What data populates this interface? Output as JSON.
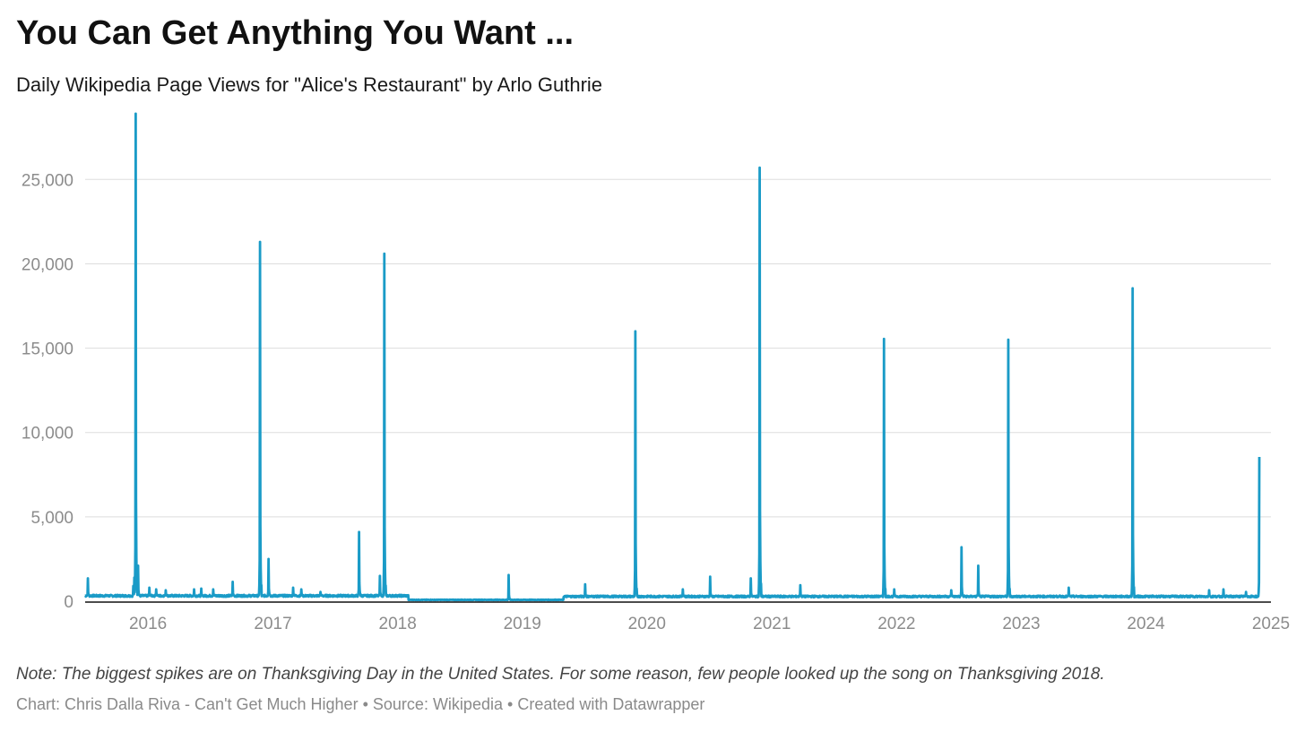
{
  "title": "You Can Get Anything You Want ...",
  "subtitle": "Daily Wikipedia Page Views for \"Alice's Restaurant\" by Arlo Guthrie",
  "note": "Note: The biggest spikes are on Thanksgiving Day in the United States. For some reason, few people looked up the song on Thanksgiving 2018.",
  "footer": {
    "chart_credit": "Chart: Chris Dalla Riva - Can't Get Much Higher",
    "source": "Source: Wikipedia",
    "tool": "Created with Datawrapper",
    "separator": "•"
  },
  "colors": {
    "line": "#1a9bc7",
    "grid": "#dddddd",
    "axis": "#111111",
    "tick_text": "#8c8c8c"
  },
  "chart_data": {
    "type": "line",
    "title": "You Can Get Anything You Want ...",
    "subtitle": "Daily Wikipedia Page Views for \"Alice's Restaurant\" by Arlo Guthrie",
    "xlabel": "",
    "ylabel": "",
    "x_range": [
      "2015-07-01",
      "2025-01-01"
    ],
    "x_data_start": "2015-07-01",
    "x_data_end": "2024-11-28",
    "ylim": [
      0,
      29000
    ],
    "x_ticks": [
      "2016",
      "2017",
      "2018",
      "2019",
      "2020",
      "2021",
      "2022",
      "2023",
      "2024",
      "2025"
    ],
    "y_ticks": [
      0,
      5000,
      10000,
      15000,
      20000,
      25000
    ],
    "y_tick_labels": [
      "0",
      "5,000",
      "10,000",
      "15,000",
      "20,000",
      "25,000"
    ],
    "grid": true,
    "legend": "none",
    "baseline": [
      {
        "start": "2015-07-01",
        "end": "2018-01-31",
        "value": 320
      },
      {
        "start": "2018-02-01",
        "end": "2019-04-30",
        "value": 80
      },
      {
        "start": "2019-05-01",
        "end": "2024-11-28",
        "value": 280
      }
    ],
    "series": [
      {
        "values": [
          {
            "date": "2015-07-09",
            "value": 1350
          },
          {
            "date": "2015-11-19",
            "value": 900
          },
          {
            "date": "2015-11-22",
            "value": 1400
          },
          {
            "date": "2015-11-26",
            "value": 28900
          },
          {
            "date": "2015-12-03",
            "value": 2100
          },
          {
            "date": "2016-01-05",
            "value": 800
          },
          {
            "date": "2016-01-25",
            "value": 700
          },
          {
            "date": "2016-02-22",
            "value": 650
          },
          {
            "date": "2016-05-15",
            "value": 700
          },
          {
            "date": "2016-06-05",
            "value": 750
          },
          {
            "date": "2016-07-10",
            "value": 700
          },
          {
            "date": "2016-09-05",
            "value": 1150
          },
          {
            "date": "2016-11-24",
            "value": 21300
          },
          {
            "date": "2016-12-19",
            "value": 2500
          },
          {
            "date": "2017-03-01",
            "value": 800
          },
          {
            "date": "2017-03-25",
            "value": 700
          },
          {
            "date": "2017-05-20",
            "value": 550
          },
          {
            "date": "2017-09-10",
            "value": 4100
          },
          {
            "date": "2017-11-10",
            "value": 1500
          },
          {
            "date": "2017-11-23",
            "value": 20600
          },
          {
            "date": "2018-11-22",
            "value": 1550
          },
          {
            "date": "2019-07-04",
            "value": 1000
          },
          {
            "date": "2019-11-28",
            "value": 16000
          },
          {
            "date": "2020-04-15",
            "value": 700
          },
          {
            "date": "2020-07-04",
            "value": 1450
          },
          {
            "date": "2020-10-31",
            "value": 1350
          },
          {
            "date": "2020-11-26",
            "value": 25700
          },
          {
            "date": "2021-03-25",
            "value": 950
          },
          {
            "date": "2021-11-25",
            "value": 15550
          },
          {
            "date": "2021-12-25",
            "value": 700
          },
          {
            "date": "2022-06-10",
            "value": 650
          },
          {
            "date": "2022-07-10",
            "value": 3200
          },
          {
            "date": "2022-08-28",
            "value": 2100
          },
          {
            "date": "2022-11-24",
            "value": 15500
          },
          {
            "date": "2023-05-20",
            "value": 800
          },
          {
            "date": "2023-11-23",
            "value": 18550
          },
          {
            "date": "2024-07-04",
            "value": 650
          },
          {
            "date": "2024-08-15",
            "value": 700
          },
          {
            "date": "2024-10-20",
            "value": 550
          },
          {
            "date": "2024-11-28",
            "value": 8550
          }
        ]
      }
    ]
  }
}
